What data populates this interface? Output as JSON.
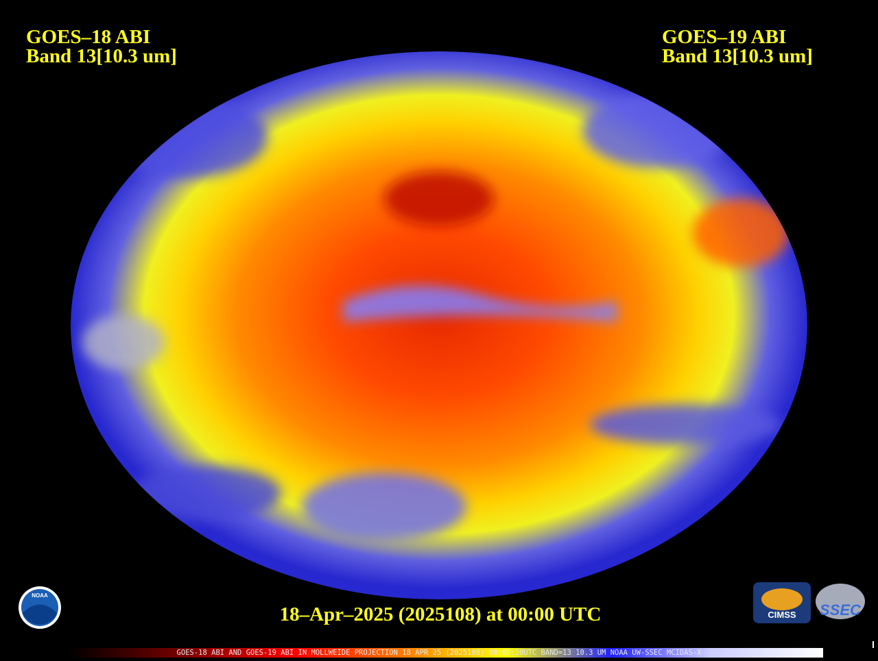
{
  "labels": {
    "left_satellite": "GOES–18 ABI",
    "left_band": "Band 13[10.3 um]",
    "right_satellite": "GOES–19 ABI",
    "right_band": "Band 13[10.3 um]",
    "timestamp": "18–Apr–2025 (2025108) at 00:00 UTC"
  },
  "footer": "GOES-18 ABI AND GOES-19 ABI IN MOLLWEIDE PROJECTION 18 APR 25 (2025108) 00:00:20UTC BAND=13 10.3 UM NOAA UW-SSEC MCIDAS-X",
  "logos": {
    "noaa": "NOAA",
    "cimss": "CIMSS",
    "ssec": "SSEC"
  }
}
